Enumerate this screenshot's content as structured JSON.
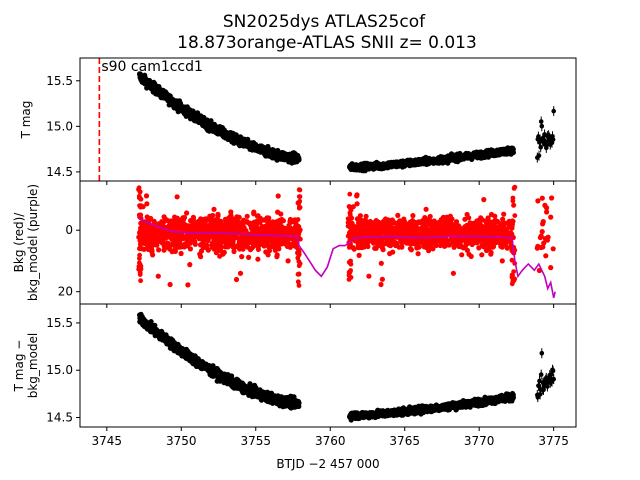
{
  "chart_data": {
    "type": "scatter",
    "title_line1": "SN2025dys  ATLAS25cof",
    "title_line2": "18.873orange-ATLAS SNII z= 0.013",
    "xlabel": "BTJD −2 457 000",
    "xlim": [
      3743.2,
      3776.5
    ],
    "xticks": [
      3745,
      3750,
      3755,
      3760,
      3765,
      3770,
      3775
    ],
    "xtick_labels": [
      "3745",
      "3750",
      "3755",
      "3760",
      "3765",
      "3770",
      "3775"
    ],
    "colors": {
      "points": "#000000",
      "bkg": "#ff0000",
      "model": "#bf00bf",
      "vline": "#ff0000"
    },
    "panels": [
      {
        "name": "tmag",
        "ylabel": [
          "T mag"
        ],
        "ylim": [
          15.75,
          14.4
        ],
        "inverted": true,
        "yticks": [
          14.5,
          15.0,
          15.5
        ],
        "ytick_labels": [
          "14.5",
          "15.0",
          "15.5"
        ],
        "annotation": "s90 cam1ccd1",
        "vline_x": 3744.5,
        "segments": [
          {
            "x0": 3747.2,
            "x1": 3757.9,
            "y0": 15.55,
            "y1": 14.65,
            "shape": "rise",
            "spread": 0.05
          },
          {
            "x0": 3761.3,
            "x1": 3772.3,
            "y0": 14.55,
            "y1": 14.74,
            "shape": "fall",
            "spread": 0.035
          },
          {
            "x0": 3773.9,
            "x1": 3775.0,
            "y0": 14.78,
            "y1": 14.85,
            "shape": "flat",
            "spread": 0.1,
            "sparse": true
          }
        ]
      },
      {
        "name": "bkg",
        "ylabel": [
          "Bkg (red)/",
          "bkg_model (purple)"
        ],
        "ylim": [
          -16,
          24
        ],
        "inverted": false,
        "yticks": [
          20,
          0
        ],
        "ytick_labels": [
          "20",
          "0"
        ],
        "bkg_segments": [
          {
            "x0": 3747.2,
            "x1": 3757.9,
            "spread": 4.5
          },
          {
            "x0": 3761.3,
            "x1": 3772.3,
            "spread": 4.0
          },
          {
            "x0": 3773.9,
            "x1": 3775.0,
            "spread": 10.0,
            "sparse": true
          }
        ],
        "model_line": [
          [
            3747.1,
            -4
          ],
          [
            3747.5,
            -3
          ],
          [
            3748.5,
            -1
          ],
          [
            3749.5,
            0.5
          ],
          [
            3751,
            1
          ],
          [
            3753,
            1
          ],
          [
            3755,
            1.5
          ],
          [
            3757.8,
            2
          ],
          [
            3757.9,
            5
          ],
          [
            3758.2,
            7
          ],
          [
            3758.6,
            10
          ],
          [
            3759.0,
            13
          ],
          [
            3759.4,
            15
          ],
          [
            3759.8,
            12
          ],
          [
            3760.0,
            9
          ],
          [
            3760.2,
            6
          ],
          [
            3760.6,
            5
          ],
          [
            3761.0,
            5
          ],
          [
            3761.3,
            4
          ],
          [
            3761.6,
            2.5
          ],
          [
            3764,
            2
          ],
          [
            3766,
            2.5
          ],
          [
            3768,
            2
          ],
          [
            3770,
            2
          ],
          [
            3772.2,
            2.5
          ],
          [
            3772.4,
            10
          ],
          [
            3772.6,
            15
          ],
          [
            3772.9,
            13
          ],
          [
            3773.3,
            11
          ],
          [
            3773.7,
            13
          ],
          [
            3774.0,
            11
          ],
          [
            3774.4,
            15
          ],
          [
            3774.6,
            19
          ],
          [
            3774.8,
            17
          ],
          [
            3775.0,
            22
          ],
          [
            3775.1,
            20
          ]
        ]
      },
      {
        "name": "tmag_corr",
        "ylabel": [
          "T mag −",
          "bkg_model"
        ],
        "ylim": [
          15.7,
          14.4
        ],
        "inverted": true,
        "yticks": [
          14.5,
          15.0,
          15.5
        ],
        "ytick_labels": [
          "14.5",
          "15.0",
          "15.5"
        ],
        "segments": [
          {
            "x0": 3747.2,
            "x1": 3757.9,
            "y0": 15.55,
            "y1": 14.65,
            "shape": "rise",
            "spread": 0.05
          },
          {
            "x0": 3761.3,
            "x1": 3772.3,
            "y0": 14.52,
            "y1": 14.72,
            "shape": "fall",
            "spread": 0.035
          },
          {
            "x0": 3773.9,
            "x1": 3775.0,
            "y0": 14.78,
            "y1": 14.95,
            "shape": "flat",
            "spread": 0.12,
            "sparse": true
          }
        ]
      }
    ]
  }
}
